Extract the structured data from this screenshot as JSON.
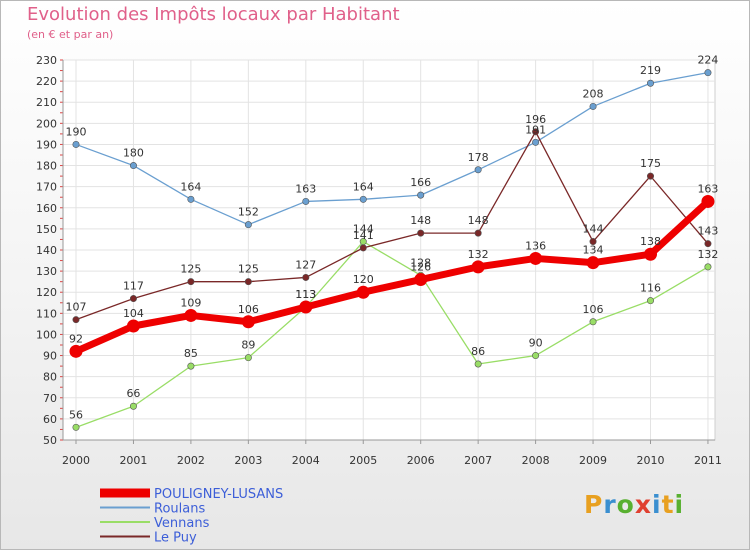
{
  "chart_data": {
    "type": "line",
    "title": "Evolution des Impôts locaux par Habitant",
    "subtitle": "(en € et par an)",
    "x": [
      "2000",
      "2001",
      "2002",
      "2003",
      "2004",
      "2005",
      "2006",
      "2007",
      "2008",
      "2009",
      "2010",
      "2011"
    ],
    "ylim": [
      50,
      230
    ],
    "yticks": [
      50,
      60,
      70,
      80,
      90,
      100,
      110,
      120,
      130,
      140,
      150,
      160,
      170,
      180,
      190,
      200,
      210,
      220,
      230
    ],
    "series": [
      {
        "name": "POULIGNEY-LUSANS",
        "color": "#ee0000",
        "values": [
          92,
          104,
          109,
          106,
          113,
          120,
          126,
          132,
          136,
          134,
          138,
          163
        ],
        "labels": [
          "92",
          "104",
          "109",
          "106",
          "113",
          "120",
          "126",
          "132",
          "136",
          "134",
          "138",
          "163"
        ]
      },
      {
        "name": "Roulans",
        "color": "#6a9fd0",
        "values": [
          190,
          180,
          164,
          152,
          163,
          164,
          166,
          178,
          191,
          208,
          219,
          224
        ],
        "labels": [
          "190",
          "180",
          "164",
          "152",
          "163",
          "164",
          "166",
          "178",
          "191",
          "208",
          "219",
          "224"
        ]
      },
      {
        "name": "Vennans",
        "color": "#99dd66",
        "values": [
          56,
          66,
          85,
          89,
          113,
          144,
          128,
          86,
          90,
          106,
          116,
          132
        ],
        "labels": [
          "56",
          "66",
          "85",
          "89",
          "113",
          "144",
          "128",
          "86",
          "90",
          "106",
          "116",
          "132"
        ]
      },
      {
        "name": "Le Puy",
        "color": "#7a2828",
        "values": [
          107,
          117,
          125,
          125,
          127,
          141,
          148,
          148,
          196,
          144,
          175,
          143
        ],
        "labels": [
          "107",
          "117",
          "125",
          "125",
          "127",
          "141",
          "148",
          "148",
          "196",
          "144",
          "175",
          "143"
        ]
      }
    ]
  },
  "logo": {
    "text": "Proxiti",
    "colors": [
      "#e8a020",
      "#3a8fd0",
      "#58b030",
      "#e04030",
      "#3a8fd0",
      "#e8a020",
      "#58b030"
    ]
  }
}
